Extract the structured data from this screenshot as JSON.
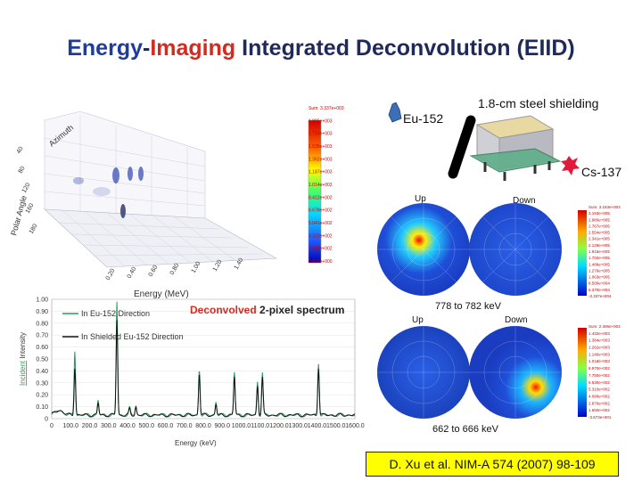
{
  "title": {
    "part1": "Energy",
    "dash": "-",
    "part2": "Imaging",
    "part3": " Integrated Deconvolution (EIID)"
  },
  "labels": {
    "eu152": "Eu-152",
    "shielding": "1.8-cm steel shielding",
    "cs137": "Cs-137",
    "up": "Up",
    "down": "Down",
    "energy_top": "778 to 782 keV",
    "energy_bottom": "662 to 666 keV",
    "reference": "D. Xu et al. NIM-A 574 (2007) 98-109"
  },
  "plot3d": {
    "ylabel": "Energy (MeV)",
    "angle_label": "Polar Angle",
    "azimuth_label": "Azimuth",
    "colorbar_ticks": [
      "Sum: 3.337e+003",
      "1.895e+003",
      "1.714e+003",
      "1.535e+003",
      "1.362e+003",
      "1.187e+003",
      "1.014e+003",
      "8.412e+002",
      "6.678e+002",
      "5.041e+002",
      "3.322e+002",
      "1.595e+002",
      "0.000e+000"
    ]
  },
  "chart_data": {
    "type": "line",
    "title_part1": "Deconvolved",
    "title_part2": " 2-pixel spectrum",
    "xlabel": "Energy (keV)",
    "ylabel_part1": "Incident",
    "ylabel_part2": " Intensity",
    "xlim": [
      0,
      1600
    ],
    "ylim": [
      0,
      1.0
    ],
    "x_ticks": [
      "0",
      "100.0",
      "200.0",
      "300.0",
      "400.0",
      "500.0",
      "600.0",
      "700.0",
      "800.0",
      "900.0",
      "1000.0",
      "1100.0",
      "1200.0",
      "1300.0",
      "1400.0",
      "1500.0",
      "1600.0"
    ],
    "y_ticks": [
      "0",
      "0.10",
      "0.20",
      "0.30",
      "0.40",
      "0.50",
      "0.60",
      "0.70",
      "0.80",
      "0.90",
      "1.00"
    ],
    "series": [
      {
        "name": "In Eu-152 Direction",
        "color": "#2a9a5c",
        "peaks": [
          [
            122,
            0.54
          ],
          [
            245,
            0.12
          ],
          [
            344,
            0.95
          ],
          [
            411,
            0.06
          ],
          [
            444,
            0.08
          ],
          [
            779,
            0.38
          ],
          [
            867,
            0.11
          ],
          [
            964,
            0.36
          ],
          [
            1086,
            0.28
          ],
          [
            1112,
            0.36
          ],
          [
            1408,
            0.44
          ]
        ]
      },
      {
        "name": "In Shielded Eu-152 Direction",
        "color": "#111111",
        "peaks": [
          [
            122,
            0.4
          ],
          [
            245,
            0.1
          ],
          [
            344,
            0.8
          ],
          [
            411,
            0.05
          ],
          [
            444,
            0.07
          ],
          [
            779,
            0.35
          ],
          [
            867,
            0.09
          ],
          [
            964,
            0.32
          ],
          [
            1086,
            0.25
          ],
          [
            1112,
            0.31
          ],
          [
            1408,
            0.4
          ]
        ]
      }
    ]
  },
  "hemi_colorbar_top": [
    "Sum: 3.163e+003",
    "3.193e+005",
    "2.980e+005",
    "2.767e+005",
    "2.554e+005",
    "2.341e+005",
    "2.128e+005",
    "1.915e+005",
    "1.702e+005",
    "1.489e+005",
    "1.276e+005",
    "1.063e+005",
    "8.500e+004",
    "6.370e+004",
    "-3.337e+004"
  ],
  "hemi_colorbar_bottom": [
    "Sum: 2.306e+003",
    "1.432e+003",
    "1.384e+003",
    "1.262e+003",
    "1.140e+003",
    "1.018e+003",
    "8.970e+002",
    "7.750e+002",
    "6.530e+002",
    "5.310e+002",
    "4.090e+002",
    "2.870e+002",
    "1.650e+002",
    "-3.673e+001"
  ],
  "colors": {
    "title": "#1f2a5a",
    "accent_blue": "#1f3c9c",
    "accent_red": "#d62a1e",
    "reference_bg": "#ffff00"
  }
}
